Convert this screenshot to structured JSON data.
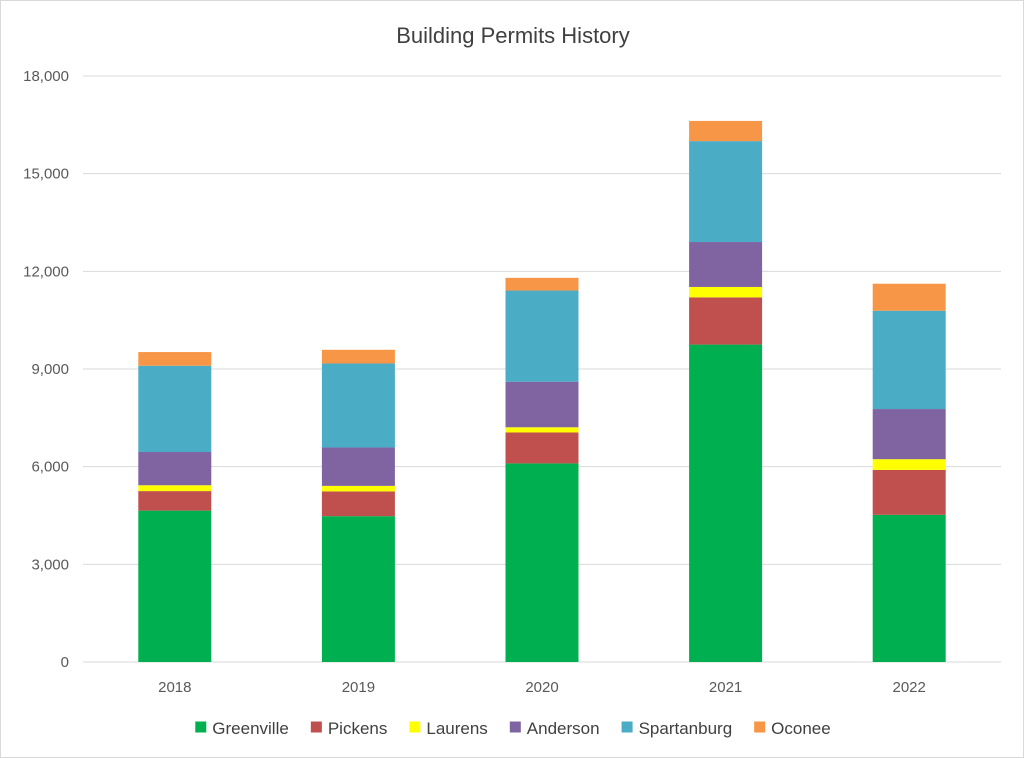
{
  "chart_data": {
    "type": "bar",
    "stacked": true,
    "title": "Building Permits History",
    "xlabel": "",
    "ylabel": "",
    "categories": [
      "2018",
      "2019",
      "2020",
      "2021",
      "2022"
    ],
    "ylim": [
      0,
      18000
    ],
    "yticks": [
      0,
      3000,
      6000,
      9000,
      12000,
      15000,
      18000
    ],
    "ytick_labels": [
      "0",
      "3,000",
      "6,000",
      "9,000",
      "12,000",
      "15,000",
      "18,000"
    ],
    "grid": true,
    "legend_position": "bottom",
    "series": [
      {
        "name": "Greenville",
        "color": "#00b050",
        "values": [
          4650,
          4480,
          6100,
          9750,
          4520
        ]
      },
      {
        "name": "Pickens",
        "color": "#c0504d",
        "values": [
          600,
          760,
          950,
          1450,
          1380
        ]
      },
      {
        "name": "Laurens",
        "color": "#ffff00",
        "values": [
          180,
          170,
          160,
          320,
          330
        ]
      },
      {
        "name": "Anderson",
        "color": "#8064a2",
        "values": [
          1020,
          1180,
          1400,
          1380,
          1540
        ]
      },
      {
        "name": "Spartanburg",
        "color": "#4bacc6",
        "values": [
          2650,
          2580,
          2800,
          3100,
          3020
        ]
      },
      {
        "name": "Oconee",
        "color": "#f79646",
        "values": [
          420,
          420,
          390,
          620,
          830
        ]
      }
    ]
  }
}
